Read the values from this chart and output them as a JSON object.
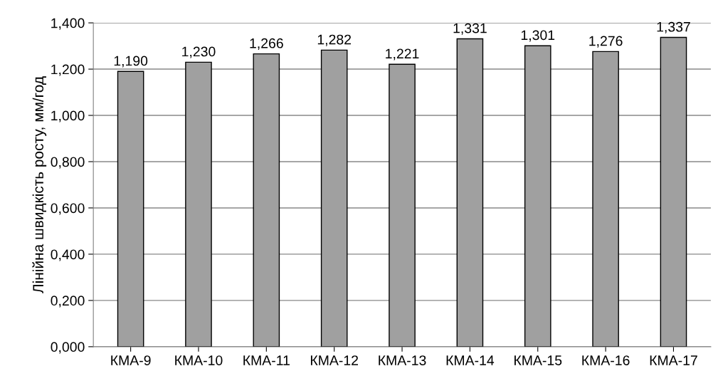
{
  "chart_data": {
    "type": "bar",
    "ylabel": "Лінійна швидкість росту, мм/год",
    "categories": [
      "КМА-9",
      "КМА-10",
      "КМА-11",
      "КМА-12",
      "КМА-13",
      "КМА-14",
      "КМА-15",
      "КМА-16",
      "КМА-17"
    ],
    "values": [
      1.19,
      1.23,
      1.266,
      1.282,
      1.221,
      1.331,
      1.301,
      1.276,
      1.337
    ],
    "value_labels": [
      "1,190",
      "1,230",
      "1,266",
      "1,282",
      "1,221",
      "1,331",
      "1,301",
      "1,276",
      "1,337"
    ],
    "color": "#a0a0a0",
    "ylim": [
      0,
      1.4
    ],
    "yticks": [
      {
        "value": 0,
        "label": "0,000"
      },
      {
        "value": 0.2,
        "label": "0,200"
      },
      {
        "value": 0.4,
        "label": "0,400"
      },
      {
        "value": 0.6,
        "label": "0,600"
      },
      {
        "value": 0.8,
        "label": "0,800"
      },
      {
        "value": 1.0,
        "label": "1,000"
      },
      {
        "value": 1.2,
        "label": "1,200"
      },
      {
        "value": 1.4,
        "label": "1,400"
      }
    ],
    "grid": "y"
  }
}
